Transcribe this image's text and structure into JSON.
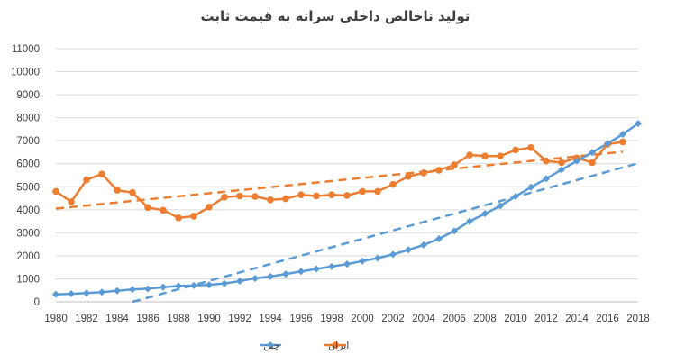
{
  "chart_data": {
    "type": "line",
    "title": "تولید ناخالص داخلی سرانه به قیمت ثابت",
    "xlabel": "",
    "ylabel": "",
    "ylim": [
      0,
      11000
    ],
    "xlim": [
      1980,
      2018
    ],
    "yticks": [
      0,
      1000,
      2000,
      3000,
      4000,
      5000,
      6000,
      7000,
      8000,
      9000,
      10000,
      11000
    ],
    "xticks": [
      1980,
      1982,
      1984,
      1986,
      1988,
      1990,
      1992,
      1994,
      1996,
      1998,
      2000,
      2002,
      2004,
      2006,
      2008,
      2010,
      2012,
      2014,
      2016,
      2018
    ],
    "grid": "horizontal",
    "legend_position": "bottom",
    "series": [
      {
        "name": "ایران",
        "color": "#ed7d31",
        "marker": "circle",
        "x": [
          1980,
          1981,
          1982,
          1983,
          1984,
          1985,
          1986,
          1987,
          1988,
          1989,
          1990,
          1991,
          1992,
          1993,
          1994,
          1995,
          1996,
          1997,
          1998,
          1999,
          2000,
          2001,
          2002,
          2003,
          2004,
          2005,
          2006,
          2007,
          2008,
          2009,
          2010,
          2011,
          2012,
          2013,
          2014,
          2015,
          2016,
          2017
        ],
        "values": [
          4800,
          4350,
          5300,
          5550,
          4850,
          4750,
          4100,
          3980,
          3650,
          3720,
          4120,
          4550,
          4600,
          4580,
          4430,
          4480,
          4650,
          4600,
          4650,
          4620,
          4800,
          4800,
          5100,
          5450,
          5600,
          5720,
          5950,
          6380,
          6330,
          6330,
          6600,
          6700,
          6120,
          6050,
          6250,
          6050,
          6850,
          6950
        ],
        "trendline": {
          "style": "linear",
          "dashed": true,
          "from": [
            1980,
            4050
          ],
          "to": [
            2017,
            6520
          ]
        }
      },
      {
        "name": "چین",
        "color": "#5b9bd5",
        "marker": "diamond",
        "x": [
          1980,
          1981,
          1982,
          1983,
          1984,
          1985,
          1986,
          1987,
          1988,
          1989,
          1990,
          1991,
          1992,
          1993,
          1994,
          1995,
          1996,
          1997,
          1998,
          1999,
          2000,
          2001,
          2002,
          2003,
          2004,
          2005,
          2006,
          2007,
          2008,
          2009,
          2010,
          2011,
          2012,
          2013,
          2014,
          2015,
          2016,
          2017,
          2018
        ],
        "values": [
          330,
          350,
          380,
          420,
          480,
          540,
          570,
          640,
          690,
          710,
          740,
          800,
          900,
          1020,
          1100,
          1210,
          1320,
          1430,
          1530,
          1640,
          1770,
          1900,
          2060,
          2260,
          2470,
          2740,
          3080,
          3500,
          3830,
          4170,
          4580,
          4980,
          5350,
          5740,
          6120,
          6490,
          6880,
          7280,
          7750
        ],
        "trendline": {
          "style": "linear",
          "dashed": true,
          "from": [
            1985,
            0
          ],
          "to": [
            2018,
            6020
          ]
        }
      }
    ]
  }
}
